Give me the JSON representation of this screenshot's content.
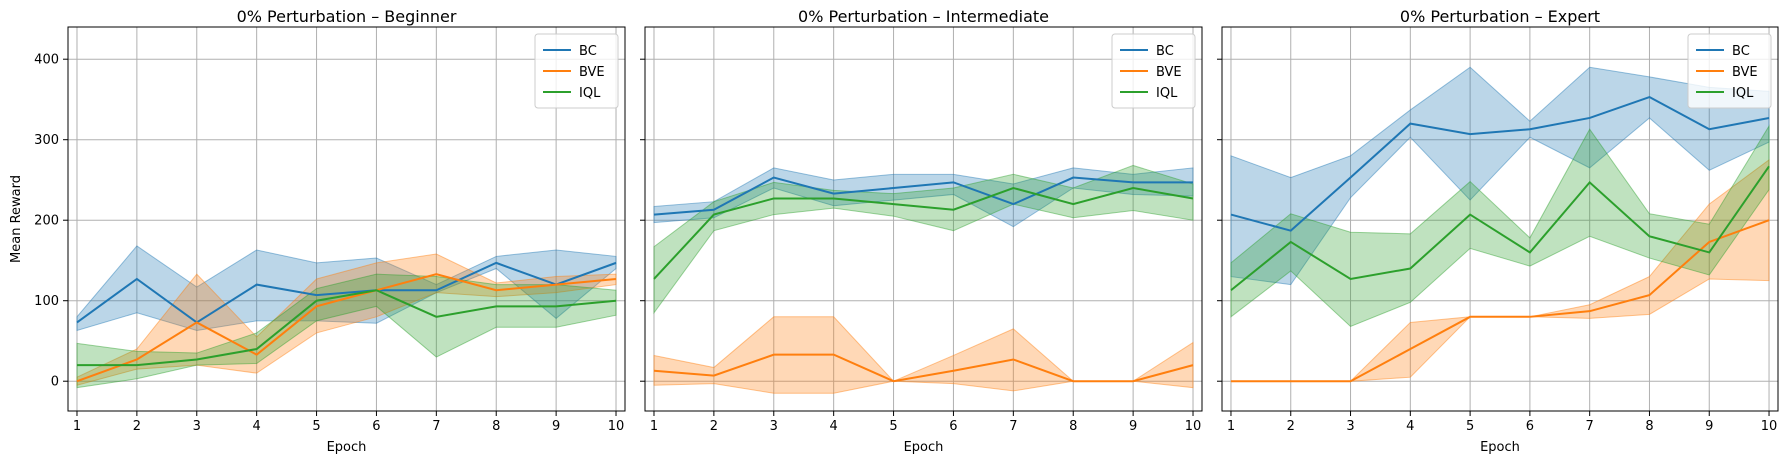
{
  "chart_data": [
    {
      "type": "line",
      "title": "0% Perturbation – Beginner",
      "xlabel": "Epoch",
      "ylabel": "Mean Reward",
      "x": [
        1,
        2,
        3,
        4,
        5,
        6,
        7,
        8,
        9,
        10
      ],
      "x_ticks": [
        "1",
        "2",
        "3",
        "4",
        "5",
        "6",
        "7",
        "8",
        "9",
        "10"
      ],
      "y_ticks": [
        "0",
        "100",
        "200",
        "300",
        "400"
      ],
      "xlim": [
        0.85,
        10.15
      ],
      "ylim": [
        -37,
        440
      ],
      "grid": true,
      "legend": "top-right",
      "series": [
        {
          "name": "BC",
          "color": "#1f77b4",
          "mean": [
            73,
            127,
            73,
            120,
            107,
            113,
            113,
            147,
            120,
            147
          ],
          "lower": [
            63,
            85,
            63,
            75,
            75,
            72,
            110,
            140,
            78,
            140
          ],
          "upper": [
            80,
            168,
            117,
            163,
            147,
            153,
            120,
            155,
            163,
            155
          ]
        },
        {
          "name": "BVE",
          "color": "#ff7f0e",
          "mean": [
            0,
            27,
            73,
            33,
            93,
            113,
            133,
            113,
            120,
            127
          ],
          "lower": [
            -5,
            15,
            20,
            10,
            60,
            80,
            110,
            105,
            110,
            120
          ],
          "upper": [
            5,
            40,
            133,
            55,
            127,
            147,
            158,
            122,
            130,
            133
          ]
        },
        {
          "name": "IQL",
          "color": "#2ca02c",
          "mean": [
            20,
            20,
            27,
            40,
            100,
            113,
            80,
            93,
            93,
            100
          ],
          "lower": [
            -8,
            3,
            20,
            22,
            75,
            93,
            30,
            67,
            67,
            82
          ],
          "upper": [
            47,
            37,
            35,
            60,
            115,
            133,
            130,
            120,
            120,
            113
          ]
        }
      ]
    },
    {
      "type": "line",
      "title": "0% Perturbation – Intermediate",
      "xlabel": "Epoch",
      "ylabel": "",
      "x": [
        1,
        2,
        3,
        4,
        5,
        6,
        7,
        8,
        9,
        10
      ],
      "x_ticks": [
        "1",
        "2",
        "3",
        "4",
        "5",
        "6",
        "7",
        "8",
        "9",
        "10"
      ],
      "y_ticks": [],
      "xlim": [
        0.85,
        10.15
      ],
      "ylim": [
        -37,
        440
      ],
      "grid": true,
      "legend": "top-right",
      "series": [
        {
          "name": "BC",
          "color": "#1f77b4",
          "mean": [
            207,
            213,
            253,
            233,
            240,
            247,
            220,
            253,
            247,
            247
          ],
          "lower": [
            197,
            203,
            240,
            218,
            225,
            232,
            192,
            240,
            232,
            230
          ],
          "upper": [
            217,
            223,
            265,
            250,
            257,
            257,
            245,
            265,
            257,
            265
          ]
        },
        {
          "name": "BVE",
          "color": "#ff7f0e",
          "mean": [
            13,
            7,
            33,
            33,
            0,
            13,
            27,
            0,
            0,
            20
          ],
          "lower": [
            -5,
            -3,
            -15,
            -15,
            0,
            -3,
            -12,
            0,
            0,
            -8
          ],
          "upper": [
            32,
            17,
            80,
            80,
            0,
            32,
            65,
            0,
            0,
            48
          ]
        },
        {
          "name": "IQL",
          "color": "#2ca02c",
          "mean": [
            127,
            207,
            227,
            227,
            220,
            213,
            240,
            220,
            240,
            227
          ],
          "lower": [
            85,
            187,
            207,
            215,
            205,
            187,
            220,
            203,
            212,
            200
          ],
          "upper": [
            167,
            223,
            247,
            237,
            233,
            240,
            257,
            240,
            268,
            245
          ]
        }
      ]
    },
    {
      "type": "line",
      "title": "0% Perturbation – Expert",
      "xlabel": "Epoch",
      "ylabel": "",
      "x": [
        1,
        2,
        3,
        4,
        5,
        6,
        7,
        8,
        9,
        10
      ],
      "x_ticks": [
        "1",
        "2",
        "3",
        "4",
        "5",
        "6",
        "7",
        "8",
        "9",
        "10"
      ],
      "y_ticks": [],
      "xlim": [
        0.85,
        10.15
      ],
      "ylim": [
        -37,
        440
      ],
      "grid": true,
      "legend": "top-right",
      "series": [
        {
          "name": "BC",
          "color": "#1f77b4",
          "mean": [
            207,
            187,
            253,
            320,
            307,
            313,
            327,
            353,
            313,
            327
          ],
          "lower": [
            130,
            120,
            228,
            303,
            225,
            303,
            265,
            327,
            262,
            297
          ],
          "upper": [
            280,
            253,
            280,
            337,
            390,
            323,
            390,
            378,
            365,
            360
          ]
        },
        {
          "name": "BVE",
          "color": "#ff7f0e",
          "mean": [
            0,
            0,
            0,
            40,
            80,
            80,
            87,
            107,
            173,
            200
          ],
          "lower": [
            0,
            0,
            0,
            5,
            80,
            80,
            78,
            83,
            127,
            125
          ],
          "upper": [
            0,
            0,
            0,
            73,
            80,
            80,
            95,
            130,
            220,
            275
          ]
        },
        {
          "name": "IQL",
          "color": "#2ca02c",
          "mean": [
            113,
            173,
            127,
            140,
            207,
            160,
            247,
            180,
            160,
            267
          ],
          "lower": [
            80,
            137,
            68,
            98,
            165,
            143,
            180,
            153,
            132,
            238
          ],
          "upper": [
            147,
            208,
            185,
            183,
            248,
            178,
            313,
            208,
            195,
            317
          ]
        }
      ]
    }
  ]
}
